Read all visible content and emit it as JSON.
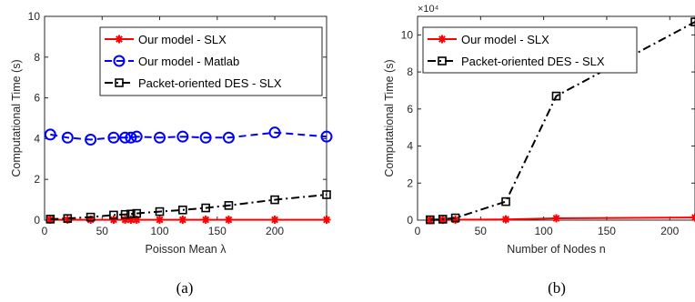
{
  "chart_data": [
    {
      "type": "line",
      "caption": "(a)",
      "xlabel": "Poisson Mean λ",
      "ylabel": "Computational Time (s)",
      "xlim": [
        0,
        245
      ],
      "ylim": [
        0,
        10
      ],
      "xticks": [
        0,
        50,
        100,
        150,
        200
      ],
      "yticks": [
        0,
        2,
        4,
        6,
        8,
        10
      ],
      "xtick_labels": [
        "0",
        "50",
        "100",
        "150",
        "200"
      ],
      "ytick_labels": [
        "0",
        "2",
        "4",
        "6",
        "8",
        "10"
      ],
      "grid": false,
      "legend_position": "top-right",
      "series": [
        {
          "name": "Our model - SLX",
          "color": "#ff0000",
          "marker": "asterisk",
          "line_style": "solid",
          "x": [
            5,
            20,
            40,
            60,
            70,
            75,
            80,
            100,
            120,
            140,
            160,
            200,
            245
          ],
          "y": [
            0.02,
            0.02,
            0.02,
            0.02,
            0.02,
            0.02,
            0.02,
            0.02,
            0.02,
            0.02,
            0.02,
            0.02,
            0.02
          ]
        },
        {
          "name": "Our model - Matlab",
          "color": "#0000ff",
          "marker": "circle",
          "line_style": "dashed",
          "x": [
            5,
            20,
            40,
            60,
            70,
            75,
            80,
            100,
            120,
            140,
            160,
            200,
            245
          ],
          "y": [
            4.2,
            4.05,
            3.95,
            4.05,
            4.05,
            4.05,
            4.1,
            4.05,
            4.1,
            4.05,
            4.05,
            4.3,
            4.1
          ]
        },
        {
          "name": "Packet-oriented DES - SLX",
          "color": "#000000",
          "marker": "square",
          "line_style": "dashdot",
          "x": [
            5,
            20,
            40,
            60,
            70,
            75,
            80,
            100,
            120,
            140,
            160,
            200,
            245
          ],
          "y": [
            0.05,
            0.08,
            0.15,
            0.25,
            0.28,
            0.3,
            0.33,
            0.42,
            0.5,
            0.6,
            0.72,
            1.0,
            1.25
          ]
        }
      ]
    },
    {
      "type": "line",
      "caption": "(b)",
      "xlabel": "Number of Nodes n",
      "ylabel": "Computational Time (s)",
      "multiplier": "×10⁴",
      "xlim": [
        0,
        220
      ],
      "ylim": [
        0,
        11
      ],
      "xticks": [
        0,
        50,
        100,
        150,
        200
      ],
      "yticks": [
        0,
        2,
        4,
        6,
        8,
        10
      ],
      "xtick_labels": [
        "0",
        "50",
        "100",
        "150",
        "200"
      ],
      "ytick_labels": [
        "0",
        "2",
        "4",
        "6",
        "8",
        "10"
      ],
      "grid": false,
      "legend_position": "top-left",
      "series": [
        {
          "name": "Our model - SLX",
          "color": "#ff0000",
          "marker": "asterisk",
          "line_style": "solid",
          "x": [
            10,
            20,
            30,
            70,
            110,
            220
          ],
          "y": [
            0.0,
            0.01,
            0.02,
            0.04,
            0.1,
            0.14
          ]
        },
        {
          "name": "Packet-oriented DES - SLX",
          "color": "#000000",
          "marker": "square",
          "line_style": "dashdot",
          "x": [
            10,
            20,
            30,
            70,
            110,
            220
          ],
          "y": [
            0.02,
            0.05,
            0.12,
            1.0,
            6.7,
            10.7
          ]
        }
      ]
    }
  ]
}
